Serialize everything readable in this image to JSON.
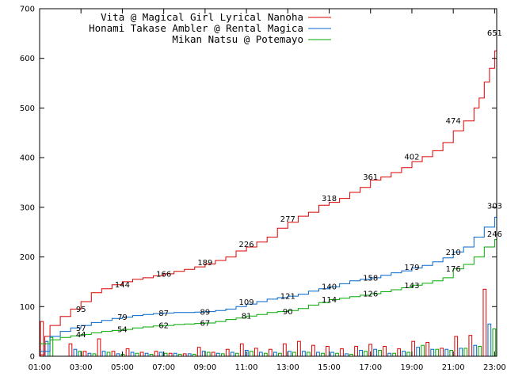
{
  "chart_data": {
    "type": "line",
    "title": "",
    "xlabel": "",
    "ylabel": "",
    "ylim": [
      0,
      700
    ],
    "yticks": [
      0,
      100,
      200,
      300,
      400,
      500,
      600,
      700
    ],
    "xlim_hours": [
      1,
      23.1
    ],
    "xticks": [
      "01:00",
      "03:00",
      "05:00",
      "07:00",
      "09:00",
      "11:00",
      "13:00",
      "15:00",
      "17:00",
      "19:00",
      "21:00",
      "23:00"
    ],
    "grid": false,
    "legend": "top-left",
    "series": [
      {
        "name": "Vita @ Magical Girl Lyrical Nanoha",
        "color": "#dd0000",
        "cumulative": {
          "x": [
            "01:00",
            "01:15",
            "01:30",
            "02:00",
            "02:30",
            "03:00",
            "03:30",
            "04:00",
            "04:30",
            "05:00",
            "05:30",
            "06:00",
            "06:30",
            "07:00",
            "07:30",
            "08:00",
            "08:30",
            "09:00",
            "09:30",
            "10:00",
            "10:30",
            "11:00",
            "11:30",
            "12:00",
            "12:30",
            "13:00",
            "13:30",
            "14:00",
            "14:30",
            "15:00",
            "15:30",
            "16:00",
            "16:30",
            "17:00",
            "17:30",
            "18:00",
            "18:30",
            "19:00",
            "19:30",
            "20:00",
            "20:30",
            "21:00",
            "21:30",
            "22:00",
            "22:15",
            "22:30",
            "22:45",
            "23:00",
            "23:06"
          ],
          "y": [
            3,
            40,
            62,
            80,
            95,
            110,
            128,
            136,
            144,
            150,
            155,
            158,
            162,
            166,
            171,
            175,
            180,
            186,
            193,
            200,
            212,
            220,
            230,
            240,
            258,
            270,
            282,
            290,
            304,
            310,
            318,
            330,
            340,
            355,
            361,
            370,
            380,
            392,
            402,
            414,
            430,
            454,
            474,
            500,
            520,
            552,
            580,
            615,
            651
          ]
        },
        "labels": [
          {
            "x": "03:00",
            "y": 95,
            "text": "95"
          },
          {
            "x": "05:00",
            "y": 144,
            "text": "144"
          },
          {
            "x": "07:00",
            "y": 166,
            "text": "166"
          },
          {
            "x": "09:00",
            "y": 189,
            "text": "189"
          },
          {
            "x": "11:00",
            "y": 226,
            "text": "226"
          },
          {
            "x": "13:00",
            "y": 277,
            "text": "277"
          },
          {
            "x": "15:00",
            "y": 318,
            "text": "318"
          },
          {
            "x": "17:00",
            "y": 361,
            "text": "361"
          },
          {
            "x": "19:00",
            "y": 402,
            "text": "402"
          },
          {
            "x": "21:00",
            "y": 474,
            "text": "474"
          },
          {
            "x": "23:00",
            "y": 651,
            "text": "651"
          }
        ],
        "hourly": [
          70,
          0,
          25,
          10,
          35,
          10,
          15,
          8,
          10,
          6,
          5,
          18,
          8,
          14,
          25,
          16,
          14,
          25,
          30,
          22,
          20,
          15,
          20,
          24,
          20,
          15,
          30,
          28,
          16,
          40,
          42,
          135
        ]
      },
      {
        "name": "Honami Takase Ambler @ Rental Magica",
        "color": "#0066cc",
        "cumulative": {
          "x": [
            "01:00",
            "01:30",
            "02:00",
            "02:30",
            "03:00",
            "03:30",
            "04:00",
            "04:30",
            "05:00",
            "05:30",
            "06:00",
            "06:30",
            "07:00",
            "07:30",
            "08:00",
            "08:30",
            "09:00",
            "09:30",
            "10:00",
            "10:30",
            "11:00",
            "11:30",
            "12:00",
            "12:30",
            "13:00",
            "13:30",
            "14:00",
            "14:30",
            "15:00",
            "15:30",
            "16:00",
            "16:30",
            "17:00",
            "17:30",
            "18:00",
            "18:30",
            "19:00",
            "19:30",
            "20:00",
            "20:30",
            "21:00",
            "21:30",
            "22:00",
            "22:30",
            "23:00",
            "23:06"
          ],
          "y": [
            10,
            40,
            50,
            57,
            62,
            68,
            72,
            76,
            79,
            82,
            84,
            86,
            87,
            88,
            88,
            89,
            90,
            92,
            95,
            100,
            105,
            110,
            115,
            118,
            121,
            125,
            131,
            136,
            140,
            146,
            152,
            155,
            158,
            163,
            168,
            172,
            178,
            183,
            190,
            198,
            210,
            220,
            240,
            260,
            280,
            303
          ]
        },
        "labels": [
          {
            "x": "03:00",
            "y": 57,
            "text": "57"
          },
          {
            "x": "05:00",
            "y": 79,
            "text": "79"
          },
          {
            "x": "07:00",
            "y": 87,
            "text": "87"
          },
          {
            "x": "09:00",
            "y": 89,
            "text": "89"
          },
          {
            "x": "11:00",
            "y": 109,
            "text": "109"
          },
          {
            "x": "13:00",
            "y": 121,
            "text": "121"
          },
          {
            "x": "15:00",
            "y": 140,
            "text": "140"
          },
          {
            "x": "17:00",
            "y": 158,
            "text": "158"
          },
          {
            "x": "19:00",
            "y": 179,
            "text": "179"
          },
          {
            "x": "21:00",
            "y": 210,
            "text": "210"
          },
          {
            "x": "23:00",
            "y": 303,
            "text": "303"
          }
        ],
        "hourly": [
          30,
          0,
          14,
          6,
          10,
          5,
          8,
          6,
          8,
          6,
          5,
          10,
          6,
          8,
          12,
          8,
          8,
          10,
          10,
          8,
          8,
          5,
          12,
          14,
          6,
          10,
          18,
          14,
          14,
          16,
          22,
          65
        ]
      },
      {
        "name": "Mikan Natsu @ Potemayo",
        "color": "#00aa00",
        "cumulative": {
          "x": [
            "01:00",
            "01:30",
            "02:00",
            "02:30",
            "03:00",
            "03:30",
            "04:00",
            "04:30",
            "05:00",
            "05:30",
            "06:00",
            "06:30",
            "07:00",
            "07:30",
            "08:00",
            "08:30",
            "09:00",
            "09:30",
            "10:00",
            "10:30",
            "11:00",
            "11:30",
            "12:00",
            "12:30",
            "13:00",
            "13:30",
            "14:00",
            "14:30",
            "15:00",
            "15:30",
            "16:00",
            "16:30",
            "17:00",
            "17:30",
            "18:00",
            "18:30",
            "19:00",
            "19:30",
            "20:00",
            "20:30",
            "21:00",
            "21:30",
            "22:00",
            "22:30",
            "23:00",
            "23:06"
          ],
          "y": [
            25,
            33,
            38,
            41,
            44,
            47,
            50,
            52,
            54,
            57,
            59,
            61,
            62,
            64,
            65,
            66,
            67,
            70,
            74,
            77,
            81,
            84,
            88,
            90,
            92,
            96,
            103,
            108,
            114,
            117,
            120,
            123,
            126,
            130,
            134,
            138,
            143,
            147,
            152,
            158,
            176,
            185,
            200,
            220,
            235,
            246
          ]
        },
        "labels": [
          {
            "x": "03:00",
            "y": 44,
            "text": "44"
          },
          {
            "x": "05:00",
            "y": 54,
            "text": "54"
          },
          {
            "x": "07:00",
            "y": 62,
            "text": "62"
          },
          {
            "x": "09:00",
            "y": 67,
            "text": "67"
          },
          {
            "x": "11:00",
            "y": 81,
            "text": "81"
          },
          {
            "x": "13:00",
            "y": 90,
            "text": "90"
          },
          {
            "x": "15:00",
            "y": 114,
            "text": "114"
          },
          {
            "x": "17:00",
            "y": 126,
            "text": "126"
          },
          {
            "x": "19:00",
            "y": 143,
            "text": "143"
          },
          {
            "x": "21:00",
            "y": 176,
            "text": "176"
          },
          {
            "x": "23:00",
            "y": 246,
            "text": "246"
          }
        ],
        "hourly": [
          38,
          0,
          10,
          5,
          8,
          4,
          6,
          4,
          6,
          4,
          4,
          8,
          5,
          6,
          10,
          6,
          6,
          8,
          8,
          6,
          6,
          4,
          10,
          12,
          6,
          8,
          22,
          14,
          12,
          16,
          20,
          55
        ]
      }
    ]
  }
}
